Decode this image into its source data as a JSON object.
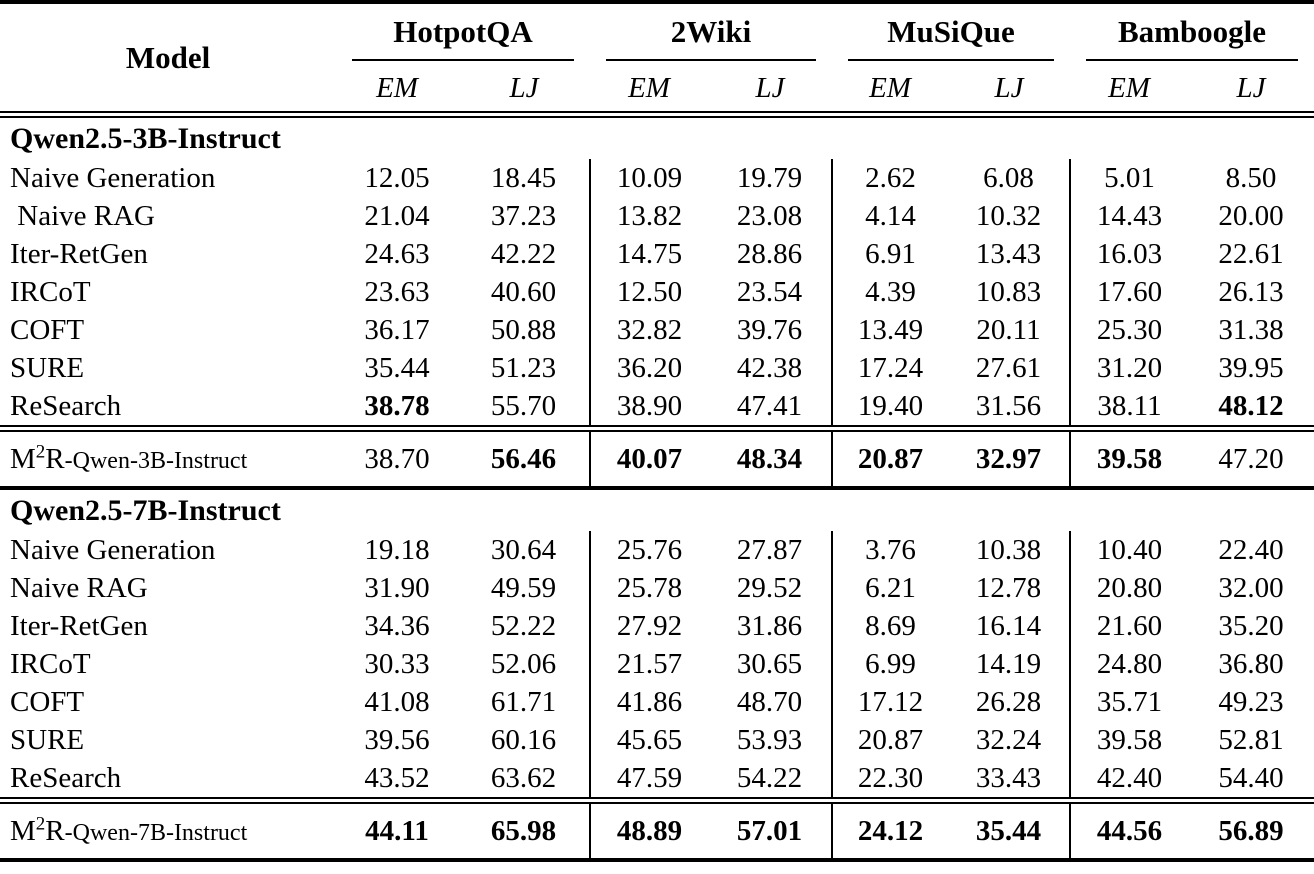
{
  "colors": {
    "text": "#000000",
    "background": "#ffffff",
    "rule": "#000000"
  },
  "table": {
    "model_header": "Model",
    "groups": [
      {
        "name": "HotpotQA",
        "metrics": [
          "EM",
          "LJ"
        ]
      },
      {
        "name": "2Wiki",
        "metrics": [
          "EM",
          "LJ"
        ]
      },
      {
        "name": "MuSiQue",
        "metrics": [
          "EM",
          "LJ"
        ]
      },
      {
        "name": "Bamboogle",
        "metrics": [
          "EM",
          "LJ"
        ]
      }
    ],
    "sections": [
      {
        "title": "Qwen2.5-3B-Instruct",
        "rows": [
          {
            "model": "Naive Generation",
            "values": [
              "12.05",
              "18.45",
              "10.09",
              "19.79",
              "2.62",
              "6.08",
              "5.01",
              "8.50"
            ],
            "bold": []
          },
          {
            "model": " Naive RAG",
            "values": [
              "21.04",
              "37.23",
              "13.82",
              "23.08",
              "4.14",
              "10.32",
              "14.43",
              "20.00"
            ],
            "bold": []
          },
          {
            "model": "Iter-RetGen",
            "values": [
              "24.63",
              "42.22",
              "14.75",
              "28.86",
              "6.91",
              "13.43",
              "16.03",
              "22.61"
            ],
            "bold": []
          },
          {
            "model": "IRCoT",
            "values": [
              "23.63",
              "40.60",
              "12.50",
              "23.54",
              "4.39",
              "10.83",
              "17.60",
              "26.13"
            ],
            "bold": []
          },
          {
            "model": "COFT",
            "values": [
              "36.17",
              "50.88",
              "32.82",
              "39.76",
              "13.49",
              "20.11",
              "25.30",
              "31.38"
            ],
            "bold": []
          },
          {
            "model": "SURE",
            "values": [
              "35.44",
              "51.23",
              "36.20",
              "42.38",
              "17.24",
              "27.61",
              "31.20",
              "39.95"
            ],
            "bold": []
          },
          {
            "model": "ReSearch",
            "values": [
              "38.78",
              "55.70",
              "38.90",
              "47.41",
              "19.40",
              "31.56",
              "38.11",
              "48.12"
            ],
            "bold": [
              0,
              7
            ]
          }
        ],
        "summary": {
          "name": {
            "base": "M",
            "sup": "2",
            "base2": "R",
            "rest": "-Qwen-3B-Instruct"
          },
          "values": [
            "38.70",
            "56.46",
            "40.07",
            "48.34",
            "20.87",
            "32.97",
            "39.58",
            "47.20"
          ],
          "bold": [
            1,
            2,
            3,
            4,
            5,
            6
          ]
        }
      },
      {
        "title": "Qwen2.5-7B-Instruct",
        "rows": [
          {
            "model": "Naive Generation",
            "values": [
              "19.18",
              "30.64",
              "25.76",
              "27.87",
              "3.76",
              "10.38",
              "10.40",
              "22.40"
            ],
            "bold": []
          },
          {
            "model": "Naive RAG",
            "values": [
              "31.90",
              "49.59",
              "25.78",
              "29.52",
              "6.21",
              "12.78",
              "20.80",
              "32.00"
            ],
            "bold": []
          },
          {
            "model": "Iter-RetGen",
            "values": [
              "34.36",
              "52.22",
              "27.92",
              "31.86",
              "8.69",
              "16.14",
              "21.60",
              "35.20"
            ],
            "bold": []
          },
          {
            "model": "IRCoT",
            "values": [
              "30.33",
              "52.06",
              "21.57",
              "30.65",
              "6.99",
              "14.19",
              "24.80",
              "36.80"
            ],
            "bold": []
          },
          {
            "model": "COFT",
            "values": [
              "41.08",
              "61.71",
              "41.86",
              "48.70",
              "17.12",
              "26.28",
              "35.71",
              "49.23"
            ],
            "bold": []
          },
          {
            "model": "SURE",
            "values": [
              "39.56",
              "60.16",
              "45.65",
              "53.93",
              "20.87",
              "32.24",
              "39.58",
              "52.81"
            ],
            "bold": []
          },
          {
            "model": "ReSearch",
            "values": [
              "43.52",
              "63.62",
              "47.59",
              "54.22",
              "22.30",
              "33.43",
              "42.40",
              "54.40"
            ],
            "bold": []
          }
        ],
        "summary": {
          "name": {
            "base": "M",
            "sup": "2",
            "base2": "R",
            "rest": "-Qwen-7B-Instruct"
          },
          "values": [
            "44.11",
            "65.98",
            "48.89",
            "57.01",
            "24.12",
            "35.44",
            "44.56",
            "56.89"
          ],
          "bold": [
            0,
            1,
            2,
            3,
            4,
            5,
            6,
            7
          ]
        }
      }
    ]
  }
}
